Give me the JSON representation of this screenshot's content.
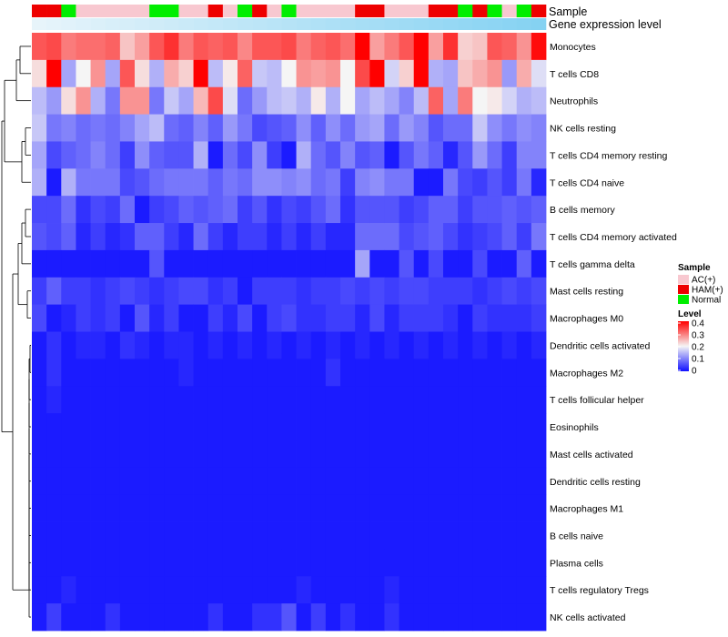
{
  "chart_data": {
    "type": "heatmap",
    "title": "",
    "row_labels": [
      "Monocytes",
      "T cells CD8",
      "Neutrophils",
      "NK cells resting",
      "T cells CD4 memory resting",
      "T cells CD4 naive",
      "B cells memory",
      "T cells CD4 memory activated",
      "T cells gamma delta",
      "Mast cells resting",
      "Macrophages M0",
      "Dendritic cells activated",
      "Macrophages M2",
      "T cells follicular helper",
      "Eosinophils",
      "Mast cells activated",
      "Dendritic cells resting",
      "Macrophages M1",
      "B cells naive",
      "Plasma cells",
      "T cells regulatory  Tregs",
      "NK cells activated"
    ],
    "column_count": 35,
    "annotation_tracks": {
      "sample_label": "Sample",
      "gene_label": "Gene expression level",
      "sample_groups": [
        "HAM(+)",
        "HAM(+)",
        "Normal",
        "AC(+)",
        "AC(+)",
        "AC(+)",
        "AC(+)",
        "AC(+)",
        "Normal",
        "Normal",
        "AC(+)",
        "AC(+)",
        "HAM(+)",
        "AC(+)",
        "Normal",
        "HAM(+)",
        "AC(+)",
        "Normal",
        "AC(+)",
        "AC(+)",
        "AC(+)",
        "AC(+)",
        "HAM(+)",
        "HAM(+)",
        "AC(+)",
        "AC(+)",
        "AC(+)",
        "HAM(+)",
        "HAM(+)",
        "Normal",
        "HAM(+)",
        "Normal",
        "AC(+)",
        "Normal",
        "HAM(+)"
      ],
      "gene_expression": [
        0.05,
        0.07,
        0.09,
        0.11,
        0.13,
        0.15,
        0.17,
        0.19,
        0.21,
        0.23,
        0.25,
        0.27,
        0.29,
        0.31,
        0.33,
        0.35,
        0.37,
        0.39,
        0.41,
        0.43,
        0.45,
        0.47,
        0.49,
        0.51,
        0.53,
        0.55,
        0.57,
        0.59,
        0.61,
        0.63,
        0.65,
        0.67,
        0.69,
        0.71,
        0.73
      ]
    },
    "legend": {
      "sample_title": "Sample",
      "sample_entries": [
        {
          "label": "AC(+)",
          "color": "#f8c8d0"
        },
        {
          "label": "HAM(+)",
          "color": "#ee0000"
        },
        {
          "label": "Normal",
          "color": "#00ee00"
        }
      ],
      "level_title": "Level",
      "level_ticks": [
        "0.4",
        "0.3",
        "0.2",
        "0.1",
        "0"
      ],
      "level_range": [
        0,
        0.4
      ],
      "placement": "right"
    },
    "colors": {
      "low": "#1010ff",
      "mid": "#f5f5f5",
      "high": "#ff0000",
      "gene_low": "#eef6fb",
      "gene_high": "#5ec4ef",
      "dendrogram": "#000000"
    },
    "values": [
      [
        0.33,
        0.34,
        0.3,
        0.31,
        0.31,
        0.32,
        0.24,
        0.27,
        0.33,
        0.36,
        0.3,
        0.33,
        0.32,
        0.33,
        0.29,
        0.33,
        0.33,
        0.34,
        0.3,
        0.32,
        0.33,
        0.31,
        0.41,
        0.27,
        0.3,
        0.33,
        0.4,
        0.27,
        0.36,
        0.23,
        0.24,
        0.33,
        0.32,
        0.28,
        0.39
      ],
      [
        0.22,
        0.4,
        0.13,
        0.2,
        0.28,
        0.13,
        0.33,
        0.22,
        0.14,
        0.26,
        0.23,
        0.4,
        0.15,
        0.21,
        0.32,
        0.16,
        0.15,
        0.2,
        0.28,
        0.27,
        0.28,
        0.2,
        0.34,
        0.4,
        0.17,
        0.23,
        0.4,
        0.14,
        0.13,
        0.24,
        0.26,
        0.28,
        0.12,
        0.26,
        0.18
      ],
      [
        0.15,
        0.12,
        0.22,
        0.28,
        0.14,
        0.09,
        0.28,
        0.28,
        0.09,
        0.16,
        0.13,
        0.25,
        0.34,
        0.18,
        0.08,
        0.12,
        0.15,
        0.16,
        0.14,
        0.21,
        0.14,
        0.2,
        0.13,
        0.15,
        0.13,
        0.1,
        0.15,
        0.32,
        0.13,
        0.3,
        0.2,
        0.21,
        0.17,
        0.14,
        0.15
      ],
      [
        0.16,
        0.09,
        0.1,
        0.08,
        0.09,
        0.08,
        0.1,
        0.13,
        0.15,
        0.08,
        0.07,
        0.1,
        0.07,
        0.12,
        0.09,
        0.05,
        0.06,
        0.07,
        0.11,
        0.07,
        0.11,
        0.08,
        0.12,
        0.13,
        0.08,
        0.12,
        0.1,
        0.06,
        0.08,
        0.08,
        0.16,
        0.11,
        0.09,
        0.11,
        0.1
      ],
      [
        0.13,
        0.05,
        0.07,
        0.08,
        0.1,
        0.08,
        0.04,
        0.11,
        0.07,
        0.06,
        0.06,
        0.14,
        0.01,
        0.08,
        0.05,
        0.11,
        0.04,
        0.01,
        0.14,
        0.08,
        0.06,
        0.1,
        0.06,
        0.07,
        0.01,
        0.06,
        0.09,
        0.07,
        0.02,
        0.06,
        0.12,
        0.08,
        0.04,
        0.1,
        0.1
      ],
      [
        0.14,
        0.01,
        0.14,
        0.09,
        0.09,
        0.09,
        0.05,
        0.06,
        0.08,
        0.09,
        0.09,
        0.09,
        0.07,
        0.09,
        0.08,
        0.11,
        0.11,
        0.1,
        0.11,
        0.08,
        0.09,
        0.04,
        0.1,
        0.11,
        0.09,
        0.09,
        0.01,
        0.01,
        0.09,
        0.05,
        0.04,
        0.06,
        0.04,
        0.09,
        0.02
      ],
      [
        0.05,
        0.05,
        0.08,
        0.03,
        0.05,
        0.04,
        0.08,
        0.01,
        0.04,
        0.05,
        0.07,
        0.06,
        0.07,
        0.08,
        0.04,
        0.06,
        0.03,
        0.05,
        0.04,
        0.06,
        0.08,
        0.03,
        0.06,
        0.06,
        0.06,
        0.04,
        0.05,
        0.07,
        0.07,
        0.04,
        0.06,
        0.06,
        0.07,
        0.06,
        0.07
      ],
      [
        0.06,
        0.05,
        0.07,
        0.02,
        0.04,
        0.02,
        0.03,
        0.07,
        0.07,
        0.04,
        0.02,
        0.08,
        0.04,
        0.02,
        0.04,
        0.04,
        0.02,
        0.04,
        0.02,
        0.04,
        0.02,
        0.02,
        0.08,
        0.08,
        0.08,
        0.05,
        0.06,
        0.07,
        0.05,
        0.03,
        0.04,
        0.05,
        0.07,
        0.04,
        0.09
      ],
      [
        0.01,
        0.01,
        0.01,
        0.01,
        0.01,
        0.01,
        0.01,
        0.01,
        0.06,
        0.01,
        0.01,
        0.01,
        0.01,
        0.01,
        0.01,
        0.01,
        0.01,
        0.01,
        0.01,
        0.01,
        0.01,
        0.01,
        0.13,
        0.01,
        0.01,
        0.06,
        0.01,
        0.05,
        0.01,
        0.01,
        0.05,
        0.01,
        0.01,
        0.07,
        0.01
      ],
      [
        0.04,
        0.07,
        0.04,
        0.04,
        0.03,
        0.04,
        0.05,
        0.04,
        0.03,
        0.04,
        0.05,
        0.05,
        0.03,
        0.04,
        0.01,
        0.04,
        0.04,
        0.04,
        0.03,
        0.04,
        0.04,
        0.05,
        0.04,
        0.05,
        0.04,
        0.05,
        0.05,
        0.04,
        0.04,
        0.04,
        0.03,
        0.04,
        0.05,
        0.04,
        0.05
      ],
      [
        0.05,
        0.01,
        0.02,
        0.04,
        0.03,
        0.04,
        0.01,
        0.06,
        0.02,
        0.04,
        0.01,
        0.01,
        0.04,
        0.02,
        0.05,
        0.01,
        0.04,
        0.05,
        0.03,
        0.03,
        0.04,
        0.04,
        0.02,
        0.05,
        0.02,
        0.04,
        0.04,
        0.04,
        0.03,
        0.01,
        0.04,
        0.03,
        0.03,
        0.03,
        0.04
      ],
      [
        0.01,
        0.03,
        0.01,
        0.02,
        0.02,
        0.01,
        0.03,
        0.02,
        0.01,
        0.02,
        0.02,
        0.01,
        0.02,
        0.01,
        0.02,
        0.01,
        0.02,
        0.01,
        0.02,
        0.01,
        0.02,
        0.01,
        0.02,
        0.01,
        0.02,
        0.01,
        0.02,
        0.01,
        0.02,
        0.01,
        0.02,
        0.01,
        0.02,
        0.01,
        0.02
      ],
      [
        0.01,
        0.03,
        0.01,
        0.01,
        0.01,
        0.01,
        0.01,
        0.01,
        0.01,
        0.01,
        0.02,
        0.01,
        0.01,
        0.01,
        0.01,
        0.01,
        0.01,
        0.01,
        0.01,
        0.01,
        0.03,
        0.01,
        0.01,
        0.01,
        0.01,
        0.01,
        0.01,
        0.01,
        0.01,
        0.01,
        0.01,
        0.01,
        0.01,
        0.01,
        0.01
      ],
      [
        0.01,
        0.02,
        0.01,
        0.01,
        0.01,
        0.01,
        0.01,
        0.01,
        0.01,
        0.01,
        0.01,
        0.01,
        0.01,
        0.01,
        0.01,
        0.01,
        0.01,
        0.01,
        0.01,
        0.01,
        0.01,
        0.01,
        0.01,
        0.01,
        0.01,
        0.01,
        0.01,
        0.01,
        0.01,
        0.01,
        0.01,
        0.01,
        0.01,
        0.01,
        0.01
      ],
      [
        0.01,
        0.01,
        0.01,
        0.01,
        0.01,
        0.01,
        0.01,
        0.01,
        0.01,
        0.01,
        0.01,
        0.01,
        0.01,
        0.01,
        0.01,
        0.01,
        0.01,
        0.01,
        0.01,
        0.01,
        0.01,
        0.01,
        0.01,
        0.01,
        0.01,
        0.01,
        0.01,
        0.01,
        0.01,
        0.01,
        0.01,
        0.01,
        0.01,
        0.01,
        0.01
      ],
      [
        0.01,
        0.01,
        0.01,
        0.01,
        0.01,
        0.01,
        0.01,
        0.01,
        0.01,
        0.01,
        0.01,
        0.01,
        0.01,
        0.01,
        0.01,
        0.01,
        0.01,
        0.01,
        0.01,
        0.01,
        0.01,
        0.01,
        0.01,
        0.01,
        0.01,
        0.01,
        0.01,
        0.01,
        0.01,
        0.01,
        0.01,
        0.01,
        0.01,
        0.01,
        0.01
      ],
      [
        0.01,
        0.01,
        0.01,
        0.01,
        0.01,
        0.01,
        0.01,
        0.01,
        0.01,
        0.01,
        0.01,
        0.01,
        0.01,
        0.01,
        0.01,
        0.01,
        0.01,
        0.01,
        0.01,
        0.01,
        0.01,
        0.01,
        0.01,
        0.01,
        0.01,
        0.01,
        0.01,
        0.01,
        0.01,
        0.01,
        0.01,
        0.01,
        0.01,
        0.01,
        0.01
      ],
      [
        0.01,
        0.01,
        0.01,
        0.01,
        0.01,
        0.01,
        0.01,
        0.01,
        0.01,
        0.01,
        0.01,
        0.01,
        0.01,
        0.01,
        0.01,
        0.01,
        0.01,
        0.01,
        0.01,
        0.01,
        0.01,
        0.01,
        0.01,
        0.01,
        0.01,
        0.01,
        0.01,
        0.01,
        0.01,
        0.01,
        0.01,
        0.01,
        0.01,
        0.01,
        0.01
      ],
      [
        0.01,
        0.01,
        0.01,
        0.01,
        0.01,
        0.01,
        0.01,
        0.01,
        0.01,
        0.01,
        0.01,
        0.01,
        0.01,
        0.01,
        0.01,
        0.01,
        0.01,
        0.01,
        0.01,
        0.01,
        0.01,
        0.01,
        0.01,
        0.01,
        0.01,
        0.01,
        0.01,
        0.01,
        0.01,
        0.01,
        0.01,
        0.01,
        0.01,
        0.01,
        0.01
      ],
      [
        0.01,
        0.01,
        0.01,
        0.01,
        0.01,
        0.01,
        0.01,
        0.01,
        0.01,
        0.01,
        0.01,
        0.01,
        0.01,
        0.01,
        0.01,
        0.01,
        0.01,
        0.01,
        0.01,
        0.01,
        0.01,
        0.01,
        0.01,
        0.01,
        0.01,
        0.01,
        0.01,
        0.01,
        0.01,
        0.01,
        0.01,
        0.01,
        0.01,
        0.01,
        0.01
      ],
      [
        0.01,
        0.01,
        0.02,
        0.01,
        0.01,
        0.01,
        0.01,
        0.01,
        0.01,
        0.01,
        0.01,
        0.01,
        0.01,
        0.01,
        0.01,
        0.01,
        0.01,
        0.01,
        0.02,
        0.01,
        0.01,
        0.01,
        0.01,
        0.01,
        0.02,
        0.01,
        0.01,
        0.01,
        0.01,
        0.01,
        0.01,
        0.01,
        0.01,
        0.01,
        0.01
      ],
      [
        0.01,
        0.04,
        0.01,
        0.01,
        0.01,
        0.03,
        0.01,
        0.01,
        0.01,
        0.01,
        0.01,
        0.01,
        0.03,
        0.01,
        0.01,
        0.03,
        0.03,
        0.06,
        0.01,
        0.04,
        0.01,
        0.03,
        0.01,
        0.01,
        0.03,
        0.01,
        0.01,
        0.01,
        0.01,
        0.01,
        0.01,
        0.01,
        0.01,
        0.01,
        0.01
      ]
    ]
  }
}
